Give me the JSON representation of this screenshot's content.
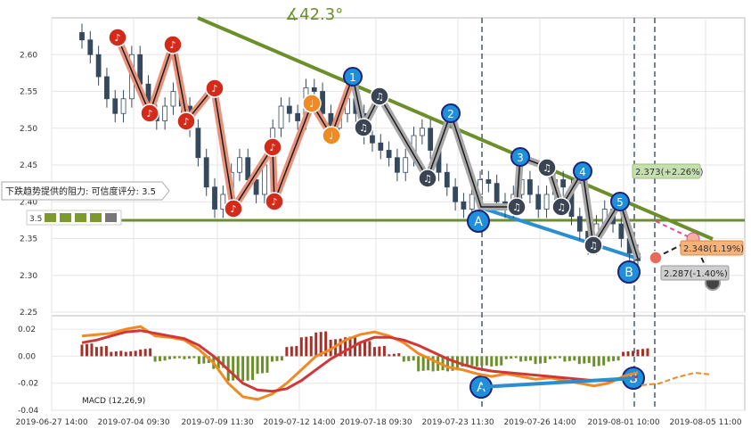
{
  "chart_data": [
    {
      "type": "candlestick",
      "angle_label": "∡42.3°",
      "ylim": [
        2.25,
        2.65
      ],
      "y_ticks": [
        "2.25",
        "2.30",
        "2.35",
        "2.40",
        "2.45",
        "2.50",
        "2.55",
        "2.60"
      ],
      "x_ticks": [
        "2019-06-27 14:00",
        "2019-07-04 09:30",
        "2019-07-09 11:30",
        "2019-07-12 14:00",
        "2019-07-18 09:30",
        "2019-07-23 11:30",
        "2019-07-26 14:00",
        "2019-08-01 10:00",
        "2019-08-05 11:00"
      ],
      "resistance_label": "下跌趋势提供的阻力: 可信度评分: 3.5",
      "score_label": "3.5",
      "support_level": 2.375,
      "wave_labels": [
        "1",
        "2",
        "3",
        "4",
        "5",
        "A",
        "B"
      ],
      "price_tags": [
        {
          "text": "2.373(+2.26%)",
          "value": 2.373,
          "color": "#c5dfb0"
        },
        {
          "text": "2.348(1.19%)",
          "value": 2.348,
          "color": "#f5b27a"
        },
        {
          "text": "2.287(-1.40%)",
          "value": 2.287,
          "color": "#cfcfcf"
        }
      ],
      "close_series": [
        2.62,
        2.6,
        2.57,
        2.54,
        2.52,
        2.54,
        2.6,
        2.56,
        2.52,
        2.51,
        2.53,
        2.55,
        2.53,
        2.5,
        2.46,
        2.42,
        2.39,
        2.41,
        2.44,
        2.46,
        2.43,
        2.41,
        2.45,
        2.5,
        2.53,
        2.52,
        2.51,
        2.555,
        2.55,
        2.52,
        2.5,
        2.52,
        2.54,
        2.52,
        2.49,
        2.48,
        2.47,
        2.46,
        2.44,
        2.46,
        2.49,
        2.5,
        2.47,
        2.44,
        2.42,
        2.4,
        2.39,
        2.41,
        2.43,
        2.425,
        2.4,
        2.39,
        2.41,
        2.43,
        2.41,
        2.39,
        2.41,
        2.43,
        2.42,
        2.38,
        2.36,
        2.34,
        2.37,
        2.39,
        2.37,
        2.35,
        2.33,
        2.32
      ]
    },
    {
      "type": "macd",
      "label": "MACD (12,26,9)",
      "ylim": [
        -0.04,
        0.03
      ],
      "y_ticks": [
        "-0.04",
        "-0.02",
        "0.00",
        "0.02"
      ],
      "macd": [
        0.015,
        0.016,
        0.017,
        0.02,
        0.022,
        0.015,
        0.014,
        0.012,
        0.005,
        -0.005,
        -0.02,
        -0.03,
        -0.032,
        -0.028,
        -0.02,
        -0.01,
        0.0,
        0.005,
        0.012,
        0.016,
        0.018,
        0.015,
        0.01,
        0.002,
        -0.003,
        -0.008,
        -0.01,
        -0.013,
        -0.015,
        -0.013,
        -0.015,
        -0.017,
        -0.016,
        -0.018,
        -0.02,
        -0.022,
        -0.02,
        -0.015,
        -0.012
      ],
      "signal": [
        0.01,
        0.012,
        0.015,
        0.018,
        0.019,
        0.017,
        0.015,
        0.013,
        0.008,
        0.0,
        -0.01,
        -0.02,
        -0.025,
        -0.026,
        -0.024,
        -0.018,
        -0.01,
        -0.002,
        0.004,
        0.01,
        0.014,
        0.014,
        0.012,
        0.008,
        0.003,
        -0.002,
        -0.006,
        -0.009,
        -0.011,
        -0.012,
        -0.013,
        -0.014,
        -0.015,
        -0.016,
        -0.017,
        -0.018,
        -0.018,
        -0.017,
        -0.015
      ]
    }
  ]
}
